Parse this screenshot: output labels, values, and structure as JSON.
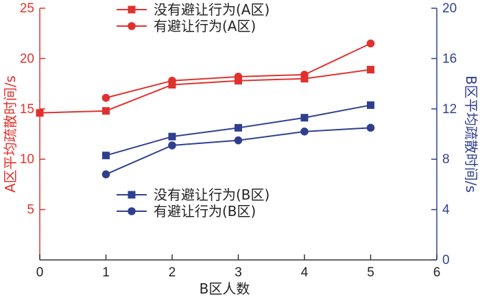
{
  "colors": {
    "red": "#e0322d",
    "blue": "#2f3f8f",
    "axis": "#333333"
  },
  "chart_data": {
    "type": "line",
    "x_axis": {
      "label": "B区人数",
      "range": [
        0,
        6
      ],
      "ticks": [
        0,
        1,
        2,
        3,
        4,
        5,
        6
      ]
    },
    "y_axis_left": {
      "label": "A区平均疏散时间/s",
      "range": [
        0,
        25
      ],
      "ticks": [
        5,
        10,
        15,
        20,
        25
      ],
      "color": "#e0322d"
    },
    "y_axis_right": {
      "label": "B区平均疏散时间/s",
      "range": [
        0,
        20
      ],
      "ticks": [
        0,
        4,
        8,
        12,
        16,
        20
      ],
      "color": "#2f3f8f"
    },
    "series": [
      {
        "name": "没有避让行为(A区)",
        "axis": "left",
        "marker": "square",
        "color": "#e0322d",
        "x": [
          0,
          1,
          2,
          3,
          4,
          5
        ],
        "y": [
          14.6,
          14.8,
          17.4,
          17.8,
          18.0,
          18.9
        ]
      },
      {
        "name": "有避让行为(A区)",
        "axis": "left",
        "marker": "circle",
        "color": "#e0322d",
        "x": [
          1,
          2,
          3,
          4,
          5
        ],
        "y": [
          16.1,
          17.8,
          18.2,
          18.4,
          21.5
        ]
      },
      {
        "name": "没有避让行为(B区)",
        "axis": "right",
        "marker": "square",
        "color": "#2f3f8f",
        "x": [
          1,
          2,
          3,
          4,
          5
        ],
        "y": [
          8.3,
          9.8,
          10.5,
          11.3,
          12.3
        ]
      },
      {
        "name": "有避让行为(B区)",
        "axis": "right",
        "marker": "circle",
        "color": "#2f3f8f",
        "x": [
          1,
          2,
          3,
          4,
          5
        ],
        "y": [
          6.8,
          9.1,
          9.5,
          10.2,
          10.5
        ]
      }
    ],
    "legends": [
      {
        "placement": "top-center",
        "series": [
          0,
          1
        ]
      },
      {
        "placement": "lower-center",
        "series": [
          2,
          3
        ]
      }
    ],
    "grid": false
  }
}
